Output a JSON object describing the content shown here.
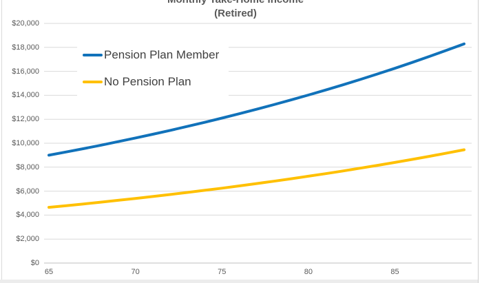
{
  "title": {
    "line1": "Monthly Take-Home Income",
    "line2": "(Retired)"
  },
  "colors": {
    "pension_line": "#1172BA",
    "no_pension_line": "#FFC000",
    "gridline": "#D9D9D9",
    "axis_line": "#BFBFBF",
    "title_text": "#595959",
    "axis_text": "#595959",
    "legend_text": "#404040"
  },
  "chart_data": {
    "type": "line",
    "title": "Monthly Take-Home Income",
    "subtitle": "(Retired)",
    "xlabel": "",
    "ylabel": "",
    "ylim": [
      0,
      20000
    ],
    "grid": "horizontal",
    "legend_position": "top-left-inside",
    "x": [
      65,
      66,
      67,
      68,
      69,
      70,
      71,
      72,
      73,
      74,
      75,
      76,
      77,
      78,
      79,
      80,
      81,
      82,
      83,
      84,
      85,
      86,
      87,
      88,
      89
    ],
    "series": [
      {
        "name": "Pension Plan Member",
        "color": "#1172BA",
        "values": [
          9000,
          9270,
          9548,
          9835,
          10130,
          10434,
          10747,
          11069,
          11401,
          11743,
          12095,
          12458,
          12832,
          13217,
          13614,
          14022,
          14443,
          14876,
          15322,
          15782,
          16255,
          16743,
          17245,
          17762,
          18295
        ]
      },
      {
        "name": "No Pension Plan",
        "color": "#FFC000",
        "values": [
          4650,
          4790,
          4933,
          5081,
          5234,
          5391,
          5552,
          5719,
          5891,
          6067,
          6249,
          6437,
          6630,
          6829,
          7034,
          7245,
          7462,
          7686,
          7917,
          8154,
          8399,
          8651,
          8910,
          9178,
          9453
        ]
      }
    ],
    "y_tick_values": [
      0,
      2000,
      4000,
      6000,
      8000,
      10000,
      12000,
      14000,
      16000,
      18000,
      20000
    ],
    "y_tick_labels": [
      "$0",
      "$2,000",
      "$4,000",
      "$6,000",
      "$8,000",
      "$10,000",
      "$12,000",
      "$14,000",
      "$16,000",
      "$18,000",
      "$20,000"
    ],
    "x_tick_values": [
      65,
      70,
      75,
      80,
      85
    ],
    "x_tick_labels": [
      "65",
      "70",
      "75",
      "80",
      "85"
    ]
  }
}
